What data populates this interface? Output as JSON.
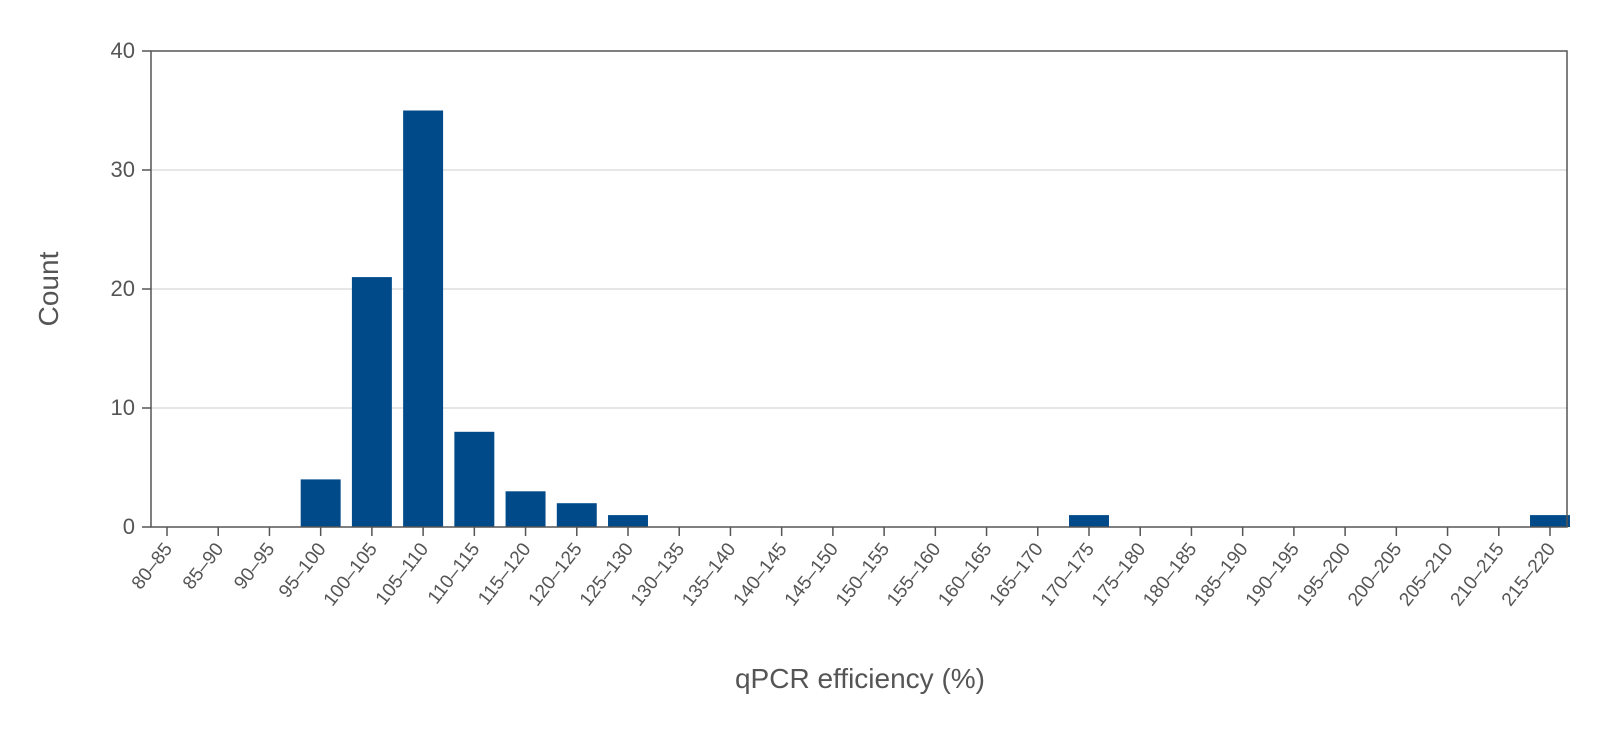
{
  "chart_data": {
    "type": "bar",
    "title": "",
    "xlabel": "qPCR efficiency (%)",
    "ylabel": "Count",
    "ylim": [
      0,
      40
    ],
    "yticks": [
      0,
      10,
      20,
      30,
      40
    ],
    "grid": true,
    "bar_color": "#004a8a",
    "categories": [
      "80–85",
      "85–90",
      "90–95",
      "95–100",
      "100–105",
      "105–110",
      "110–115",
      "115–120",
      "120–125",
      "125–130",
      "130–135",
      "135–140",
      "140–145",
      "145–150",
      "150–155",
      "155–160",
      "160–165",
      "165–170",
      "170–175",
      "175–180",
      "180–185",
      "185–190",
      "190–195",
      "195–200",
      "200–205",
      "205–210",
      "210–215",
      "215–220"
    ],
    "values": [
      0,
      0,
      0,
      4,
      21,
      35,
      8,
      3,
      2,
      1,
      0,
      0,
      0,
      0,
      0,
      0,
      0,
      0,
      1,
      0,
      0,
      0,
      0,
      0,
      0,
      0,
      0,
      1
    ]
  }
}
